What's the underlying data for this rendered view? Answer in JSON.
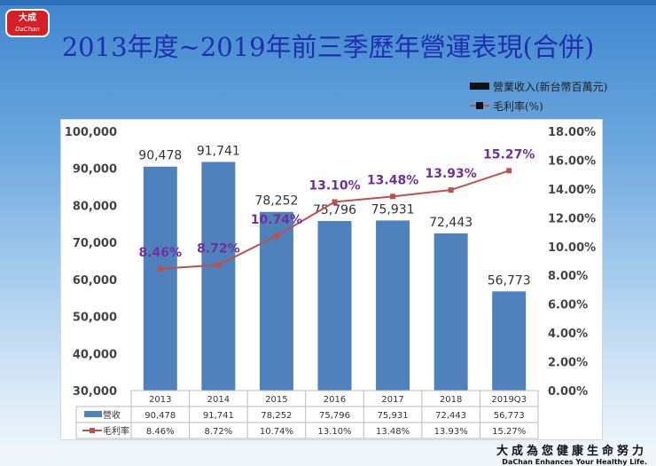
{
  "logo": {
    "zh": "大成",
    "en": "DaChan"
  },
  "title": "2013年度~2019年前三季歷年營運表現(合併)",
  "legend": {
    "bar": "營業收入(新台幣百萬元)",
    "line": "毛利率(%)"
  },
  "slogan": {
    "zh": "大成為您健康生命努力",
    "en": "DaChan Enhances Your Healthy Life."
  },
  "colors": {
    "bar": "#4f81bd",
    "line": "#c0504d",
    "line_label": "#7030a0",
    "title": "#1e2fb0"
  },
  "chart_data": {
    "type": "bar+line",
    "categories": [
      "2013",
      "2014",
      "2015",
      "2016",
      "2017",
      "2018",
      "2019Q3"
    ],
    "series": [
      {
        "name": "營收",
        "type": "bar",
        "axis": "left",
        "values": [
          90478,
          91741,
          78252,
          75796,
          75931,
          72443,
          56773
        ],
        "labels": [
          "90,478",
          "91,741",
          "78,252",
          "75,796",
          "75,931",
          "72,443",
          "56,773"
        ]
      },
      {
        "name": "毛利率",
        "type": "line",
        "axis": "right",
        "values": [
          8.46,
          8.72,
          10.74,
          13.1,
          13.48,
          13.93,
          15.27
        ],
        "labels": [
          "8.46%",
          "8.72%",
          "10.74%",
          "13.10%",
          "13.48%",
          "13.93%",
          "15.27%"
        ]
      }
    ],
    "y_left": {
      "range": [
        30000,
        100000
      ],
      "ticks": [
        "30,000",
        "40,000",
        "50,000",
        "60,000",
        "70,000",
        "80,000",
        "90,000",
        "100,000"
      ]
    },
    "y_right": {
      "range": [
        0,
        18
      ],
      "ticks": [
        "0.00%",
        "2.00%",
        "4.00%",
        "6.00%",
        "8.00%",
        "10.00%",
        "12.00%",
        "14.00%",
        "16.00%",
        "18.00%"
      ]
    },
    "data_table": true,
    "grid": false
  }
}
